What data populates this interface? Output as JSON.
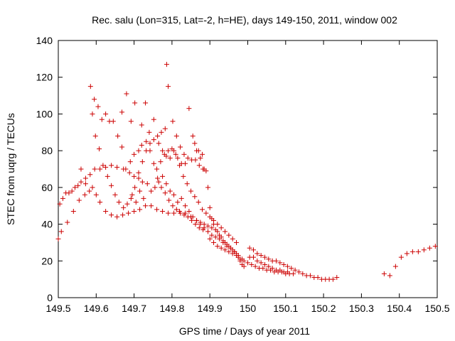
{
  "chart_data": {
    "type": "scatter",
    "title": "Rec. salu (Lon=315, Lat=-2, h=HE), days 149-150, 2011, window 002",
    "xlabel": "GPS time / Days of year 2011",
    "ylabel": "STEC from uqrg / TECUs",
    "xlim": [
      149.5,
      150.5
    ],
    "ylim": [
      0,
      140
    ],
    "xticks": [
      149.5,
      149.6,
      149.7,
      149.8,
      149.9,
      150.0,
      150.1,
      150.2,
      150.3,
      150.4,
      150.5
    ],
    "xtick_labels": [
      "149.5",
      "149.6",
      "149.7",
      "149.8",
      "149.9",
      "150",
      "150.1",
      "150.2",
      "150.3",
      "150.4",
      "150.5"
    ],
    "yticks": [
      0,
      20,
      40,
      60,
      80,
      100,
      120,
      140
    ],
    "ytick_labels": [
      "0",
      "20",
      "40",
      "60",
      "80",
      "100",
      "120",
      "140"
    ],
    "marker": "+",
    "marker_color": "#cc0000",
    "grid": false,
    "series": [
      {
        "name": "STEC",
        "points": [
          [
            149.5,
            32
          ],
          [
            149.504,
            51
          ],
          [
            149.512,
            54
          ],
          [
            149.52,
            57
          ],
          [
            149.528,
            57
          ],
          [
            149.536,
            58
          ],
          [
            149.544,
            60
          ],
          [
            149.552,
            61
          ],
          [
            149.56,
            63
          ],
          [
            149.572,
            65
          ],
          [
            149.584,
            67
          ],
          [
            149.596,
            70
          ],
          [
            149.61,
            70
          ],
          [
            149.625,
            71
          ],
          [
            149.64,
            72
          ],
          [
            149.655,
            71
          ],
          [
            149.672,
            70
          ],
          [
            149.688,
            68
          ],
          [
            149.7,
            66
          ],
          [
            149.712,
            65
          ],
          [
            149.722,
            63
          ],
          [
            149.508,
            36
          ],
          [
            149.524,
            41
          ],
          [
            149.54,
            47
          ],
          [
            149.555,
            53
          ],
          [
            149.57,
            56
          ],
          [
            149.582,
            58
          ],
          [
            149.59,
            60
          ],
          [
            149.6,
            56
          ],
          [
            149.61,
            52
          ],
          [
            149.625,
            47
          ],
          [
            149.64,
            45
          ],
          [
            149.655,
            44
          ],
          [
            149.67,
            45
          ],
          [
            149.685,
            46
          ],
          [
            149.7,
            47
          ],
          [
            149.715,
            48
          ],
          [
            149.73,
            50
          ],
          [
            149.745,
            50
          ],
          [
            149.76,
            48
          ],
          [
            149.775,
            47
          ],
          [
            149.79,
            46
          ],
          [
            149.805,
            46
          ],
          [
            149.82,
            47
          ],
          [
            149.835,
            46
          ],
          [
            149.85,
            44
          ],
          [
            149.865,
            42
          ],
          [
            149.875,
            40
          ],
          [
            149.885,
            38
          ],
          [
            149.895,
            36
          ],
          [
            149.905,
            34
          ],
          [
            149.915,
            33
          ],
          [
            149.925,
            32
          ],
          [
            149.935,
            30
          ],
          [
            149.945,
            28
          ],
          [
            149.955,
            27
          ],
          [
            149.965,
            25
          ],
          [
            149.975,
            23
          ],
          [
            149.985,
            21
          ],
          [
            149.56,
            70
          ],
          [
            149.572,
            62
          ],
          [
            149.585,
            115
          ],
          [
            149.595,
            108
          ],
          [
            149.605,
            104
          ],
          [
            149.615,
            97
          ],
          [
            149.625,
            100
          ],
          [
            149.635,
            96
          ],
          [
            149.645,
            96
          ],
          [
            149.657,
            88
          ],
          [
            149.668,
            82
          ],
          [
            149.678,
            70
          ],
          [
            149.69,
            74
          ],
          [
            149.7,
            78
          ],
          [
            149.712,
            80
          ],
          [
            149.72,
            83
          ],
          [
            149.732,
            85
          ],
          [
            149.742,
            80
          ],
          [
            149.752,
            73
          ],
          [
            149.762,
            65
          ],
          [
            149.772,
            60
          ],
          [
            149.782,
            57
          ],
          [
            149.792,
            53
          ],
          [
            149.802,
            50
          ],
          [
            149.812,
            48
          ],
          [
            149.822,
            46
          ],
          [
            149.832,
            45
          ],
          [
            149.842,
            44
          ],
          [
            149.852,
            42
          ],
          [
            149.862,
            40
          ],
          [
            149.872,
            38
          ],
          [
            149.882,
            37
          ],
          [
            149.59,
            100
          ],
          [
            149.598,
            88
          ],
          [
            149.608,
            81
          ],
          [
            149.618,
            72
          ],
          [
            149.63,
            66
          ],
          [
            149.64,
            61
          ],
          [
            149.65,
            56
          ],
          [
            149.66,
            52
          ],
          [
            149.672,
            49
          ],
          [
            149.682,
            51
          ],
          [
            149.692,
            54
          ],
          [
            149.702,
            60
          ],
          [
            149.712,
            68
          ],
          [
            149.722,
            74
          ],
          [
            149.732,
            80
          ],
          [
            149.742,
            84
          ],
          [
            149.752,
            86
          ],
          [
            149.762,
            88
          ],
          [
            149.772,
            90
          ],
          [
            149.782,
            92
          ],
          [
            149.79,
            115
          ],
          [
            149.786,
            127
          ],
          [
            149.802,
            96
          ],
          [
            149.812,
            88
          ],
          [
            149.822,
            82
          ],
          [
            149.832,
            78
          ],
          [
            149.842,
            76
          ],
          [
            149.852,
            75
          ],
          [
            149.862,
            75
          ],
          [
            149.872,
            72
          ],
          [
            149.882,
            70
          ],
          [
            149.668,
            101
          ],
          [
            149.68,
            111
          ],
          [
            149.692,
            96
          ],
          [
            149.702,
            106
          ],
          [
            149.72,
            94
          ],
          [
            149.73,
            106
          ],
          [
            149.74,
            90
          ],
          [
            149.752,
            97
          ],
          [
            149.765,
            84
          ],
          [
            149.775,
            80
          ],
          [
            149.785,
            77
          ],
          [
            149.795,
            76
          ],
          [
            149.805,
            80
          ],
          [
            149.815,
            76
          ],
          [
            149.825,
            73
          ],
          [
            149.835,
            73
          ],
          [
            149.845,
            103
          ],
          [
            149.855,
            88
          ],
          [
            149.865,
            80
          ],
          [
            149.875,
            76
          ],
          [
            149.885,
            70
          ],
          [
            149.695,
            56
          ],
          [
            149.705,
            52
          ],
          [
            149.715,
            58
          ],
          [
            149.725,
            54
          ],
          [
            149.735,
            62
          ],
          [
            149.745,
            58
          ],
          [
            149.755,
            60
          ],
          [
            149.765,
            63
          ],
          [
            149.775,
            66
          ],
          [
            149.785,
            62
          ],
          [
            149.795,
            58
          ],
          [
            149.805,
            56
          ],
          [
            149.815,
            52
          ],
          [
            149.825,
            54
          ],
          [
            149.835,
            50
          ],
          [
            149.845,
            47
          ],
          [
            149.855,
            44
          ],
          [
            149.865,
            42
          ],
          [
            149.875,
            41
          ],
          [
            149.885,
            40
          ],
          [
            149.895,
            39
          ],
          [
            149.905,
            38
          ],
          [
            149.76,
            70
          ],
          [
            149.77,
            74
          ],
          [
            149.78,
            78
          ],
          [
            149.79,
            80
          ],
          [
            149.8,
            81
          ],
          [
            149.81,
            78
          ],
          [
            149.82,
            72
          ],
          [
            149.83,
            66
          ],
          [
            149.84,
            62
          ],
          [
            149.85,
            58
          ],
          [
            149.86,
            55
          ],
          [
            149.87,
            52
          ],
          [
            149.88,
            48
          ],
          [
            149.89,
            46
          ],
          [
            149.9,
            44
          ],
          [
            149.91,
            42
          ],
          [
            149.92,
            40
          ],
          [
            149.93,
            38
          ],
          [
            149.94,
            36
          ],
          [
            149.95,
            34
          ],
          [
            149.96,
            32
          ],
          [
            149.97,
            30
          ],
          [
            149.86,
            84
          ],
          [
            149.87,
            80
          ],
          [
            149.88,
            78
          ],
          [
            149.89,
            69
          ],
          [
            149.895,
            60
          ],
          [
            149.9,
            49
          ],
          [
            149.905,
            43
          ],
          [
            149.91,
            40
          ],
          [
            149.915,
            37
          ],
          [
            149.92,
            36
          ],
          [
            149.925,
            34
          ],
          [
            149.93,
            33
          ],
          [
            149.935,
            31
          ],
          [
            149.94,
            30
          ],
          [
            149.945,
            29
          ],
          [
            149.95,
            28
          ],
          [
            149.955,
            27
          ],
          [
            149.96,
            26
          ],
          [
            149.965,
            25
          ],
          [
            149.97,
            24
          ],
          [
            149.975,
            22
          ],
          [
            149.98,
            20
          ],
          [
            149.985,
            18
          ],
          [
            149.99,
            17
          ],
          [
            149.9,
            32
          ],
          [
            149.91,
            30
          ],
          [
            149.92,
            28
          ],
          [
            149.93,
            27
          ],
          [
            149.94,
            26
          ],
          [
            149.95,
            25
          ],
          [
            149.96,
            24
          ],
          [
            149.97,
            23
          ],
          [
            149.98,
            21
          ],
          [
            149.99,
            20
          ],
          [
            150.0,
            19
          ],
          [
            150.01,
            18
          ],
          [
            150.02,
            17
          ],
          [
            150.03,
            16
          ],
          [
            150.04,
            16
          ],
          [
            150.05,
            15
          ],
          [
            150.06,
            15
          ],
          [
            150.07,
            14
          ],
          [
            150.08,
            14
          ],
          [
            150.09,
            14
          ],
          [
            150.1,
            13
          ],
          [
            150.11,
            13
          ],
          [
            150.12,
            13
          ],
          [
            150.005,
            27
          ],
          [
            150.015,
            26
          ],
          [
            150.025,
            24
          ],
          [
            150.035,
            23
          ],
          [
            150.045,
            22
          ],
          [
            150.055,
            21
          ],
          [
            150.065,
            20
          ],
          [
            150.075,
            20
          ],
          [
            150.085,
            19
          ],
          [
            150.095,
            18
          ],
          [
            150.105,
            17
          ],
          [
            150.115,
            16
          ],
          [
            150.125,
            15
          ],
          [
            150.135,
            14
          ],
          [
            150.145,
            13
          ],
          [
            150.155,
            12
          ],
          [
            150.165,
            12
          ],
          [
            150.175,
            11
          ],
          [
            150.185,
            11
          ],
          [
            150.195,
            10
          ],
          [
            150.205,
            10
          ],
          [
            150.215,
            10
          ],
          [
            150.225,
            10
          ],
          [
            150.235,
            11
          ],
          [
            150.005,
            22
          ],
          [
            150.015,
            22
          ],
          [
            150.025,
            20
          ],
          [
            150.035,
            19
          ],
          [
            150.045,
            18
          ],
          [
            150.055,
            17
          ],
          [
            150.065,
            16
          ],
          [
            150.075,
            15
          ],
          [
            150.085,
            15
          ],
          [
            150.095,
            14
          ],
          [
            150.105,
            14
          ],
          [
            150.36,
            13
          ],
          [
            150.375,
            12
          ],
          [
            150.39,
            17
          ],
          [
            150.405,
            22
          ],
          [
            150.42,
            24
          ],
          [
            150.435,
            25
          ],
          [
            150.45,
            25
          ],
          [
            150.465,
            26
          ],
          [
            150.48,
            27
          ],
          [
            150.495,
            28
          ]
        ]
      }
    ]
  }
}
